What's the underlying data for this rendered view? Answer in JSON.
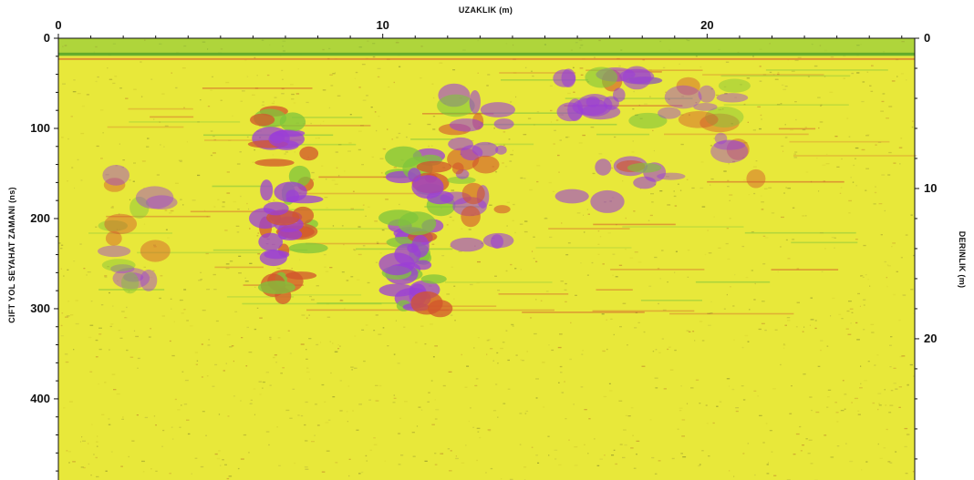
{
  "chart_data": {
    "type": "heatmap",
    "title": "",
    "xlabel": "UZAKLIK (m)",
    "ylabel": "CIFT YOL SEYAHAT ZAMANI (ns)",
    "y2label": "DERINLIK (m)",
    "x_ticks": [
      0,
      10,
      20
    ],
    "x_range": [
      0,
      26.4
    ],
    "y_ticks": [
      0,
      100,
      200,
      300,
      400
    ],
    "y_range": [
      0,
      490
    ],
    "y2_ticks": [
      0,
      10,
      20
    ],
    "y2_range": [
      0,
      29.4
    ],
    "colors": {
      "background": "#e8e83a",
      "strong_anomaly": "#9b3fd6",
      "horizon": "#7fc43c",
      "reflection": "#d2552c"
    },
    "surface_layer_time_ns": 20,
    "anomalies": [
      {
        "x": [
          6.2,
          7.8
        ],
        "t": [
          80,
          290
        ],
        "intensity": "high"
      },
      {
        "x": [
          10.4,
          11.8
        ],
        "t": [
          130,
          300
        ],
        "intensity": "high"
      },
      {
        "x": [
          12.2,
          13.8
        ],
        "t": [
          50,
          230
        ],
        "intensity": "medium"
      },
      {
        "x": [
          15.4,
          18.4
        ],
        "t": [
          40,
          190
        ],
        "intensity": "medium"
      },
      {
        "x": [
          18.8,
          22.2
        ],
        "t": [
          50,
          160
        ],
        "intensity": "low"
      },
      {
        "x": [
          1.4,
          3.2
        ],
        "t": [
          150,
          310
        ],
        "intensity": "low"
      }
    ]
  }
}
